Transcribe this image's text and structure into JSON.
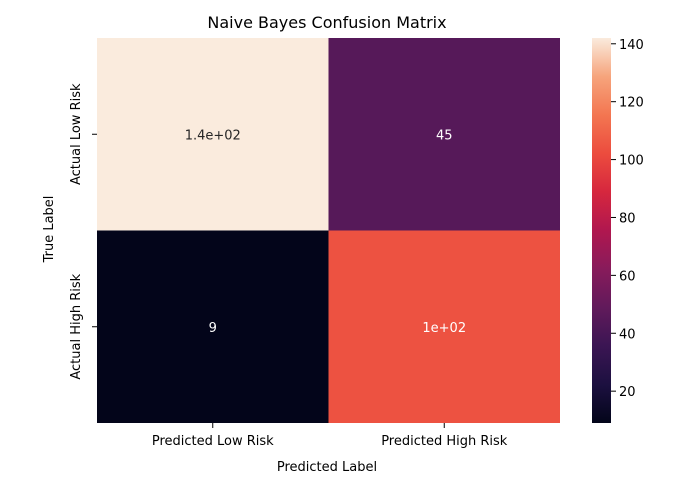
{
  "chart_data": {
    "type": "heatmap",
    "title": "Naive Bayes Confusion Matrix",
    "xlabel": "Predicted Label",
    "ylabel": "True Label",
    "x_categories": [
      "Predicted Low Risk",
      "Predicted High Risk"
    ],
    "y_categories": [
      "Actual Low Risk",
      "Actual High Risk"
    ],
    "values": [
      [
        142,
        45
      ],
      [
        9,
        104
      ]
    ],
    "annotations": [
      [
        "1.4e+02",
        "45"
      ],
      [
        "9",
        "1e+02"
      ]
    ],
    "colorbar": {
      "min": 9,
      "max": 142,
      "ticks": [
        20,
        40,
        60,
        80,
        100,
        120,
        140
      ],
      "colormap": "rocket"
    }
  }
}
